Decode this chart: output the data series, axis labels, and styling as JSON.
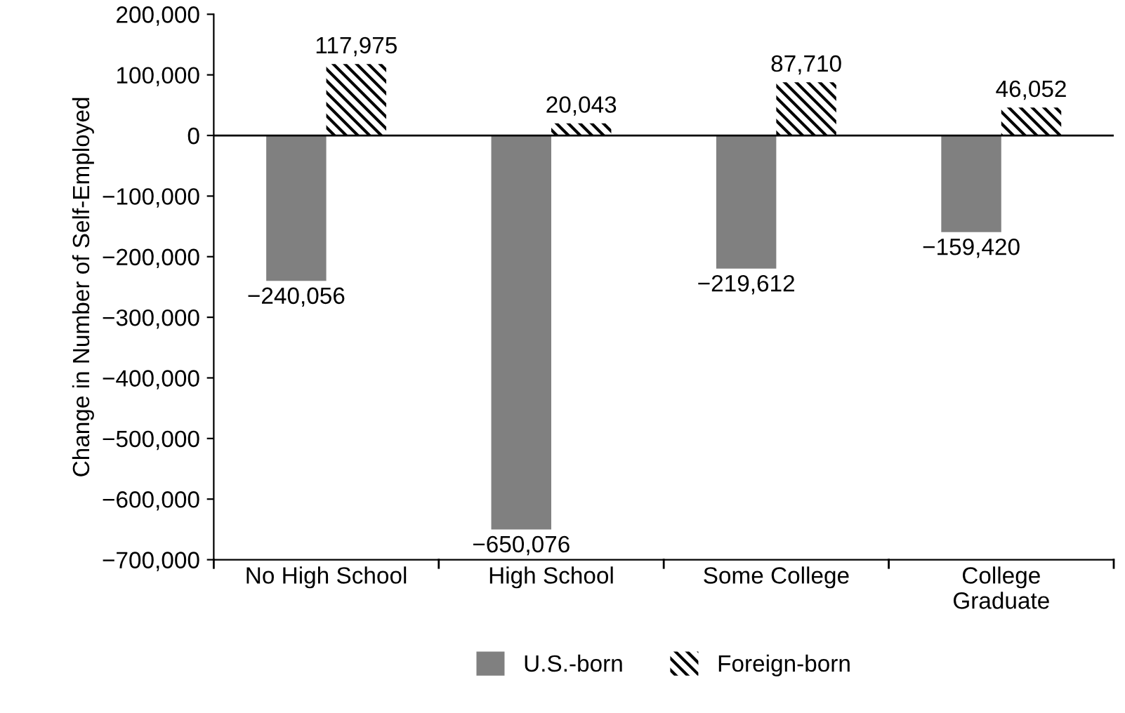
{
  "chart_data": {
    "type": "bar",
    "ylabel": "Change in Number of Self-Employed",
    "categories": [
      "No High School",
      "High School",
      "Some College",
      "College\nGraduate"
    ],
    "series": [
      {
        "name": "U.S.-born",
        "color": "#808080",
        "values": [
          -240056,
          -650076,
          -219612,
          -159420
        ],
        "value_labels": [
          "−240,056",
          "−650,076",
          "−219,612",
          "−159,420"
        ]
      },
      {
        "name": "Foreign-born",
        "color": "#000000",
        "values": [
          117975,
          20043,
          87710,
          46052
        ],
        "value_labels": [
          "117,975",
          "20,043",
          "87,710",
          "46,052"
        ]
      }
    ],
    "ylim": [
      -700000,
      200000
    ],
    "yticks": [
      {
        "value": 200000,
        "label": "200,000"
      },
      {
        "value": 100000,
        "label": "100,000"
      },
      0,
      {
        "value": -100000,
        "label": "−100,000"
      },
      {
        "value": -200000,
        "label": "−200,000"
      },
      {
        "value": -300000,
        "label": "−300,000"
      },
      {
        "value": -400000,
        "label": "−400,000"
      },
      {
        "value": -500000,
        "label": "−500,000"
      },
      {
        "value": -600000,
        "label": "−600,000"
      },
      {
        "value": -700000,
        "label": "−700,000"
      }
    ],
    "ref_lines": [
      {
        "axis": "y",
        "value": 0,
        "label": null,
        "color": "#000000"
      }
    ],
    "grid": false,
    "legend": "bottom"
  }
}
